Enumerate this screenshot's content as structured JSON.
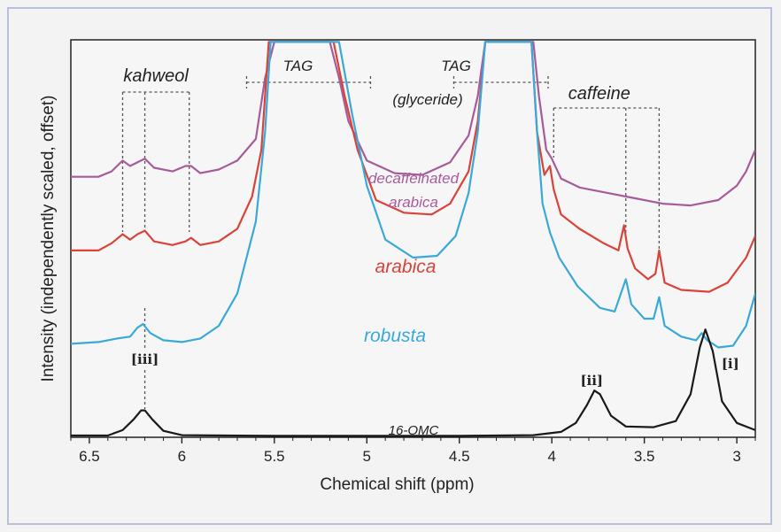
{
  "chart_data": {
    "type": "line",
    "xlabel": "Chemical shift (ppm)",
    "ylabel": "Intensity (independently scaled, offset)",
    "xlim": [
      6.6,
      2.9
    ],
    "x_reversed": true,
    "xticks": [
      "6.5",
      "6",
      "5.5",
      "5",
      "4.5",
      "4",
      "3.5",
      "3"
    ],
    "xtick_values": [
      6.5,
      6.0,
      5.5,
      5.0,
      4.5,
      4.0,
      3.5,
      3.0
    ],
    "grid": false,
    "legend": "none",
    "series": [
      {
        "name": "decaffeinated arabica",
        "label_lines": [
          "decaffeinated",
          "arabica"
        ],
        "color": "#a65c9a",
        "points": [
          [
            6.6,
            0.725
          ],
          [
            6.45,
            0.725
          ],
          [
            6.38,
            0.74
          ],
          [
            6.32,
            0.77
          ],
          [
            6.28,
            0.755
          ],
          [
            6.24,
            0.765
          ],
          [
            6.2,
            0.775
          ],
          [
            6.15,
            0.75
          ],
          [
            6.05,
            0.74
          ],
          [
            5.98,
            0.755
          ],
          [
            5.95,
            0.755
          ],
          [
            5.9,
            0.735
          ],
          [
            5.8,
            0.745
          ],
          [
            5.7,
            0.77
          ],
          [
            5.6,
            0.83
          ],
          [
            5.55,
            1.0
          ],
          [
            5.5,
            1.1
          ],
          [
            5.2,
            1.1
          ],
          [
            5.15,
            1.0
          ],
          [
            5.1,
            0.88
          ],
          [
            5.0,
            0.77
          ],
          [
            4.85,
            0.735
          ],
          [
            4.7,
            0.73
          ],
          [
            4.55,
            0.765
          ],
          [
            4.45,
            0.84
          ],
          [
            4.4,
            0.95
          ],
          [
            4.36,
            1.1
          ],
          [
            4.1,
            1.1
          ],
          [
            4.07,
            0.95
          ],
          [
            4.03,
            0.8
          ],
          [
            4.0,
            0.775
          ],
          [
            3.95,
            0.72
          ],
          [
            3.85,
            0.695
          ],
          [
            3.7,
            0.68
          ],
          [
            3.55,
            0.665
          ],
          [
            3.4,
            0.65
          ],
          [
            3.25,
            0.645
          ],
          [
            3.1,
            0.66
          ],
          [
            3.0,
            0.7
          ],
          [
            2.95,
            0.74
          ],
          [
            2.9,
            0.8
          ]
        ]
      },
      {
        "name": "arabica",
        "label_lines": [
          "arabica"
        ],
        "color": "#d9433a",
        "points": [
          [
            6.6,
            0.52
          ],
          [
            6.45,
            0.52
          ],
          [
            6.38,
            0.54
          ],
          [
            6.32,
            0.565
          ],
          [
            6.28,
            0.55
          ],
          [
            6.24,
            0.565
          ],
          [
            6.2,
            0.575
          ],
          [
            6.15,
            0.545
          ],
          [
            6.05,
            0.535
          ],
          [
            5.98,
            0.545
          ],
          [
            5.95,
            0.555
          ],
          [
            5.9,
            0.535
          ],
          [
            5.8,
            0.545
          ],
          [
            5.7,
            0.58
          ],
          [
            5.62,
            0.67
          ],
          [
            5.57,
            0.8
          ],
          [
            5.53,
            1.1
          ],
          [
            5.18,
            1.1
          ],
          [
            5.12,
            0.95
          ],
          [
            5.05,
            0.8
          ],
          [
            4.95,
            0.66
          ],
          [
            4.8,
            0.625
          ],
          [
            4.65,
            0.62
          ],
          [
            4.55,
            0.65
          ],
          [
            4.45,
            0.74
          ],
          [
            4.4,
            0.88
          ],
          [
            4.36,
            1.1
          ],
          [
            4.11,
            1.1
          ],
          [
            4.08,
            0.85
          ],
          [
            4.04,
            0.73
          ],
          [
            4.01,
            0.755
          ],
          [
            3.99,
            0.69
          ],
          [
            3.95,
            0.62
          ],
          [
            3.85,
            0.58
          ],
          [
            3.72,
            0.54
          ],
          [
            3.64,
            0.52
          ],
          [
            3.61,
            0.59
          ],
          [
            3.59,
            0.525
          ],
          [
            3.55,
            0.47
          ],
          [
            3.48,
            0.44
          ],
          [
            3.44,
            0.455
          ],
          [
            3.42,
            0.52
          ],
          [
            3.39,
            0.43
          ],
          [
            3.3,
            0.41
          ],
          [
            3.15,
            0.405
          ],
          [
            3.05,
            0.43
          ],
          [
            2.95,
            0.5
          ],
          [
            2.9,
            0.56
          ]
        ]
      },
      {
        "name": "robusta",
        "label_lines": [
          "robusta"
        ],
        "color": "#3aa9d8",
        "points": [
          [
            6.6,
            0.26
          ],
          [
            6.45,
            0.265
          ],
          [
            6.35,
            0.275
          ],
          [
            6.28,
            0.28
          ],
          [
            6.24,
            0.305
          ],
          [
            6.21,
            0.315
          ],
          [
            6.17,
            0.29
          ],
          [
            6.1,
            0.27
          ],
          [
            6.0,
            0.265
          ],
          [
            5.9,
            0.275
          ],
          [
            5.8,
            0.31
          ],
          [
            5.7,
            0.4
          ],
          [
            5.6,
            0.6
          ],
          [
            5.55,
            0.85
          ],
          [
            5.52,
            1.1
          ],
          [
            5.15,
            1.1
          ],
          [
            5.08,
            0.9
          ],
          [
            5.0,
            0.7
          ],
          [
            4.9,
            0.55
          ],
          [
            4.75,
            0.5
          ],
          [
            4.62,
            0.505
          ],
          [
            4.52,
            0.56
          ],
          [
            4.45,
            0.68
          ],
          [
            4.4,
            0.85
          ],
          [
            4.36,
            1.1
          ],
          [
            4.11,
            1.1
          ],
          [
            4.08,
            0.85
          ],
          [
            4.05,
            0.65
          ],
          [
            4.01,
            0.57
          ],
          [
            3.96,
            0.5
          ],
          [
            3.86,
            0.42
          ],
          [
            3.74,
            0.36
          ],
          [
            3.66,
            0.35
          ],
          [
            3.62,
            0.41
          ],
          [
            3.6,
            0.44
          ],
          [
            3.57,
            0.37
          ],
          [
            3.5,
            0.33
          ],
          [
            3.45,
            0.33
          ],
          [
            3.42,
            0.39
          ],
          [
            3.39,
            0.31
          ],
          [
            3.3,
            0.28
          ],
          [
            3.22,
            0.27
          ],
          [
            3.19,
            0.29
          ],
          [
            3.16,
            0.27
          ],
          [
            3.1,
            0.25
          ],
          [
            3.02,
            0.255
          ],
          [
            2.95,
            0.31
          ],
          [
            2.9,
            0.4
          ]
        ]
      },
      {
        "name": "16-OMC",
        "label_lines": [
          "16-OMC"
        ],
        "color": "#1a1a1a",
        "points": [
          [
            6.6,
            0.005
          ],
          [
            6.4,
            0.005
          ],
          [
            6.32,
            0.02
          ],
          [
            6.26,
            0.05
          ],
          [
            6.22,
            0.075
          ],
          [
            6.2,
            0.075
          ],
          [
            6.16,
            0.05
          ],
          [
            6.1,
            0.018
          ],
          [
            6.0,
            0.006
          ],
          [
            5.5,
            0.004
          ],
          [
            5.0,
            0.004
          ],
          [
            4.5,
            0.004
          ],
          [
            4.1,
            0.006
          ],
          [
            3.95,
            0.015
          ],
          [
            3.87,
            0.04
          ],
          [
            3.81,
            0.09
          ],
          [
            3.77,
            0.13
          ],
          [
            3.74,
            0.12
          ],
          [
            3.68,
            0.06
          ],
          [
            3.6,
            0.03
          ],
          [
            3.45,
            0.028
          ],
          [
            3.33,
            0.045
          ],
          [
            3.25,
            0.12
          ],
          [
            3.2,
            0.25
          ],
          [
            3.17,
            0.3
          ],
          [
            3.13,
            0.24
          ],
          [
            3.08,
            0.1
          ],
          [
            3.0,
            0.04
          ],
          [
            2.9,
            0.02
          ]
        ]
      }
    ],
    "annotations": {
      "kahweol": {
        "label": "kahweol",
        "positions": [
          6.32,
          6.2,
          5.96
        ],
        "bracket_top": 0.93
      },
      "tag_1": {
        "label": "TAG",
        "range": [
          5.65,
          4.98
        ],
        "y": 1.04
      },
      "tag_2": {
        "label_line1": "TAG",
        "label_line2": "(glyceride)",
        "range": [
          4.53,
          4.02
        ],
        "y": 1.04
      },
      "caffeine": {
        "label": "caffeine",
        "positions": [
          3.99,
          3.6,
          3.42
        ],
        "bracket_top": 0.88
      },
      "peaks": [
        {
          "label": "[iii]",
          "x": 6.2
        },
        {
          "label": "[ii]",
          "x": 3.77
        },
        {
          "label": "[i]",
          "x": 3.15
        }
      ]
    }
  }
}
